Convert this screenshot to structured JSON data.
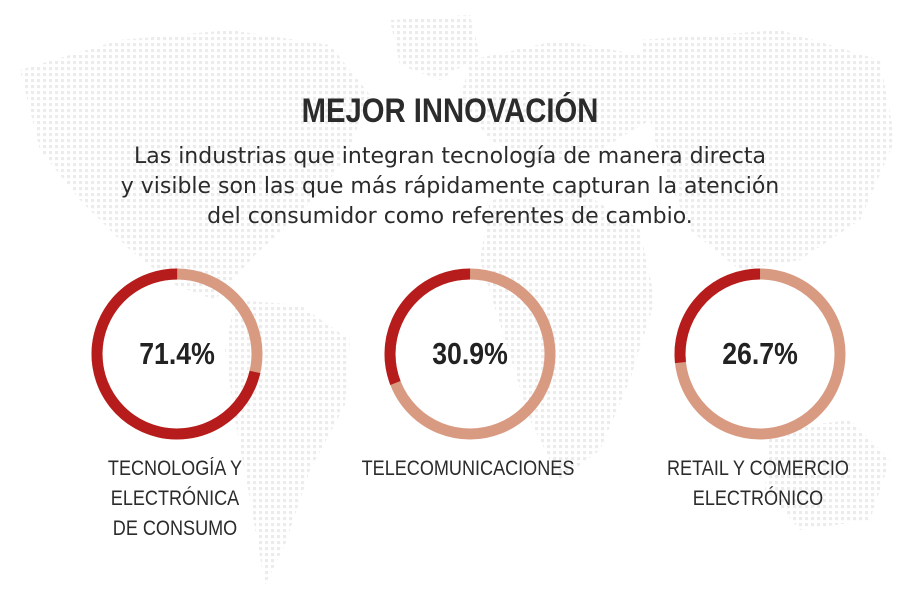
{
  "header": {
    "title": "MEJOR INNOVACIÓN",
    "subtitle_lines": [
      "Las industrias que integran tecnología de manera directa",
      "y visible son las que más rápidamente capturan la atención",
      "del consumidor como referentes de cambio."
    ]
  },
  "colors": {
    "filled": "#b71c1c",
    "remaining": "#d99a82",
    "text": "#2b2b2b",
    "map_dots": "#ededed"
  },
  "chart_data": {
    "type": "pie",
    "variant": "donut",
    "items": [
      {
        "value": 71.4,
        "value_label": "71.4%",
        "label_lines": [
          "TECNOLOGÍA Y ELECTRÓNICA",
          "DE CONSUMO"
        ]
      },
      {
        "value": 30.9,
        "value_label": "30.9%",
        "label_lines": [
          "TELECOMUNICACIONES"
        ]
      },
      {
        "value": 26.7,
        "value_label": "26.7%",
        "label_lines": [
          "RETAIL Y COMERCIO",
          "ELECTRÓNICO"
        ]
      }
    ]
  }
}
